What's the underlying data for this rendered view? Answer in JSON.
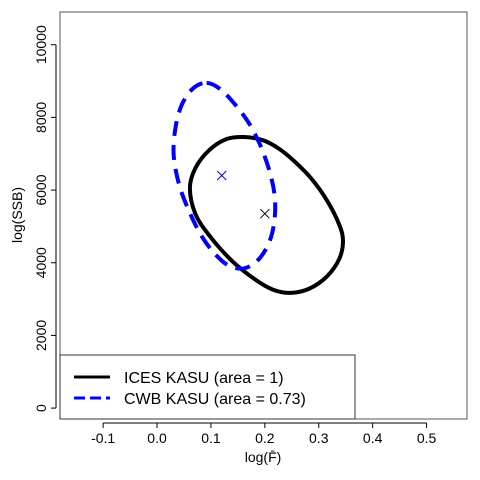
{
  "chart_data": {
    "type": "line",
    "title": "",
    "xlabel": "log(F̄)",
    "ylabel": "log(SSB)",
    "xlim": [
      -0.18,
      0.575
    ],
    "ylim": [
      -300,
      10900
    ],
    "x_ticks": [
      -0.1,
      0.0,
      0.1,
      0.2,
      0.3,
      0.4,
      0.5
    ],
    "x_tick_labels": [
      "-0.1",
      "0.0",
      "0.1",
      "0.2",
      "0.3",
      "0.4",
      "0.5"
    ],
    "y_ticks": [
      0,
      2000,
      4000,
      6000,
      8000,
      10000
    ],
    "y_tick_labels": [
      "0",
      "2000",
      "4000",
      "6000",
      "8000",
      "10000"
    ],
    "grid": false,
    "legend_position": "bottom-left",
    "series": [
      {
        "name": "ICES KASU (area = 1)",
        "style": "solid",
        "color": "#000000",
        "center": [
          0.2,
          5350
        ],
        "center_marker": "x",
        "ellipse_points": [
          [
            0.161,
            7460
          ],
          [
            0.197,
            7370
          ],
          [
            0.227,
            7130
          ],
          [
            0.257,
            6760
          ],
          [
            0.286,
            6320
          ],
          [
            0.315,
            5720
          ],
          [
            0.338,
            5050
          ],
          [
            0.345,
            4600
          ],
          [
            0.338,
            4100
          ],
          [
            0.315,
            3620
          ],
          [
            0.283,
            3290
          ],
          [
            0.248,
            3170
          ],
          [
            0.215,
            3260
          ],
          [
            0.18,
            3560
          ],
          [
            0.139,
            4050
          ],
          [
            0.097,
            4750
          ],
          [
            0.071,
            5350
          ],
          [
            0.061,
            6050
          ],
          [
            0.071,
            6600
          ],
          [
            0.097,
            7100
          ],
          [
            0.128,
            7400
          ],
          [
            0.161,
            7460
          ]
        ]
      },
      {
        "name": "CWB KASU (area = 0.73)",
        "style": "dashed",
        "color": "#0000ff",
        "center": [
          0.12,
          6400
        ],
        "center_marker": "x",
        "ellipse_points": [
          [
            0.092,
            8950
          ],
          [
            0.118,
            8770
          ],
          [
            0.145,
            8350
          ],
          [
            0.17,
            7850
          ],
          [
            0.191,
            7250
          ],
          [
            0.208,
            6550
          ],
          [
            0.218,
            5850
          ],
          [
            0.218,
            5200
          ],
          [
            0.209,
            4600
          ],
          [
            0.189,
            4100
          ],
          [
            0.163,
            3850
          ],
          [
            0.134,
            3910
          ],
          [
            0.107,
            4250
          ],
          [
            0.082,
            4750
          ],
          [
            0.06,
            5400
          ],
          [
            0.041,
            6150
          ],
          [
            0.031,
            6950
          ],
          [
            0.034,
            7700
          ],
          [
            0.046,
            8350
          ],
          [
            0.067,
            8800
          ],
          [
            0.092,
            8950
          ]
        ]
      }
    ]
  }
}
